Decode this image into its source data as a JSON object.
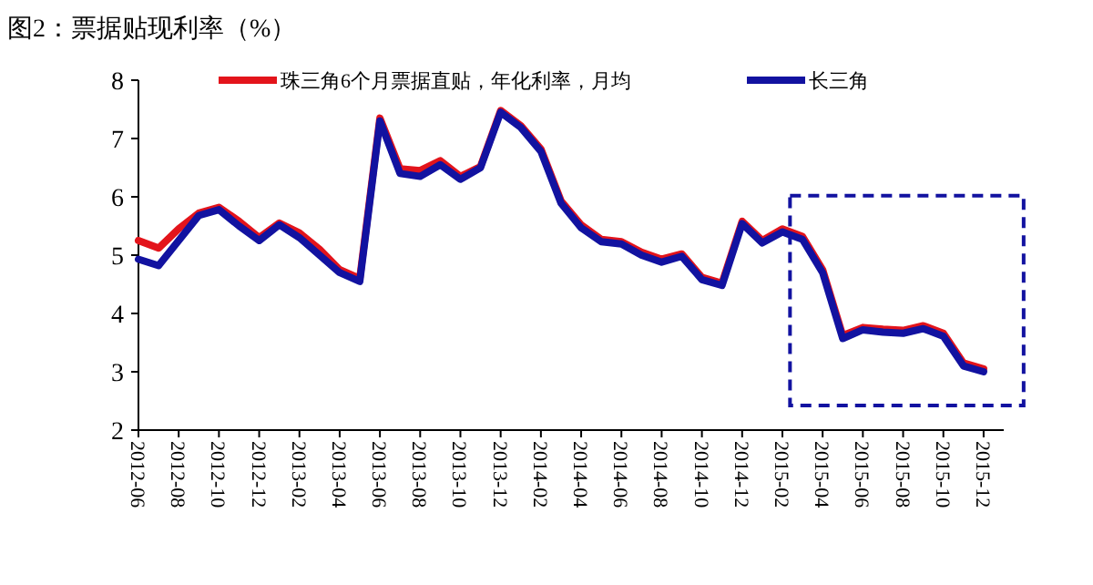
{
  "chart_data": {
    "type": "line",
    "title": "图2：票据贴现利率（%）",
    "x": [
      "2012-06",
      "2012-07",
      "2012-08",
      "2012-09",
      "2012-10",
      "2012-11",
      "2012-12",
      "2013-01",
      "2013-02",
      "2013-03",
      "2013-04",
      "2013-05",
      "2013-06",
      "2013-07",
      "2013-08",
      "2013-09",
      "2013-10",
      "2013-11",
      "2013-12",
      "2014-01",
      "2014-02",
      "2014-03",
      "2014-04",
      "2014-05",
      "2014-06",
      "2014-07",
      "2014-08",
      "2014-09",
      "2014-10",
      "2014-11",
      "2014-12",
      "2015-01",
      "2015-02",
      "2015-03",
      "2015-04",
      "2015-05",
      "2015-06",
      "2015-07",
      "2015-08",
      "2015-09",
      "2015-10",
      "2015-11",
      "2015-12"
    ],
    "series": [
      {
        "name": "珠三角6个月票据直贴，年化利率，月均",
        "color": "#e3141b",
        "values": [
          5.25,
          5.12,
          5.45,
          5.72,
          5.82,
          5.58,
          5.3,
          5.55,
          5.38,
          5.1,
          4.75,
          4.6,
          7.35,
          6.48,
          6.45,
          6.62,
          6.35,
          6.52,
          7.48,
          7.22,
          6.82,
          5.93,
          5.52,
          5.27,
          5.23,
          5.05,
          4.93,
          5.02,
          4.62,
          4.52,
          5.58,
          5.25,
          5.45,
          5.32,
          4.75,
          3.62,
          3.76,
          3.73,
          3.71,
          3.79,
          3.66,
          3.15,
          3.05
        ]
      },
      {
        "name": "长三角",
        "color": "#1212a0",
        "values": [
          4.93,
          4.82,
          5.25,
          5.68,
          5.78,
          5.5,
          5.25,
          5.52,
          5.3,
          5.0,
          4.7,
          4.55,
          7.3,
          6.4,
          6.35,
          6.55,
          6.3,
          6.5,
          7.45,
          7.19,
          6.78,
          5.89,
          5.47,
          5.23,
          5.19,
          5.0,
          4.88,
          4.98,
          4.58,
          4.48,
          5.54,
          5.21,
          5.4,
          5.27,
          4.7,
          3.57,
          3.72,
          3.68,
          3.66,
          3.74,
          3.61,
          3.1,
          3.0
        ]
      }
    ],
    "xlim": [
      "2012-06",
      "2016-01"
    ],
    "xticks": [
      "2012-06",
      "2012-08",
      "2012-10",
      "2012-12",
      "2013-02",
      "2013-04",
      "2013-06",
      "2013-08",
      "2013-10",
      "2013-12",
      "2014-02",
      "2014-04",
      "2014-06",
      "2014-08",
      "2014-10",
      "2014-12",
      "2015-02",
      "2015-04",
      "2015-06",
      "2015-08",
      "2015-10",
      "2015-12"
    ],
    "ylim": [
      2,
      8
    ],
    "yticks": [
      2,
      3,
      4,
      5,
      6,
      7,
      8
    ],
    "legend": "top",
    "grid": false,
    "marker": "none",
    "line_style": "solid"
  }
}
